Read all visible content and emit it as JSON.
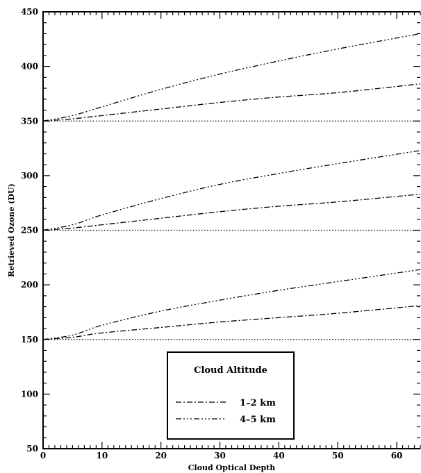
{
  "chart_data": {
    "type": "line",
    "title": "",
    "xlabel": "Cloud Optical Depth",
    "ylabel": "Retrieved Ozone (DU)",
    "xlim": [
      0,
      64
    ],
    "ylim": [
      50,
      450
    ],
    "x_ticks": [
      0,
      10,
      20,
      30,
      40,
      50,
      60
    ],
    "y_ticks": [
      50,
      100,
      150,
      200,
      250,
      300,
      350,
      400,
      450
    ],
    "grid": false,
    "legend": {
      "title": "Cloud Altitude",
      "position": "lower-center",
      "entries": [
        {
          "label": "1–2 km",
          "style": "dash-dot"
        },
        {
          "label": "4–5 km",
          "style": "dash-dot-dot-dot"
        }
      ]
    },
    "series": [
      {
        "style": "dotted",
        "x": [
          0,
          64
        ],
        "y": [
          350,
          350
        ]
      },
      {
        "legend_index": 0,
        "style": "dash-dot",
        "x": [
          0,
          5,
          10,
          20,
          30,
          40,
          50,
          64
        ],
        "y": [
          350,
          352,
          355,
          361,
          367,
          372,
          376,
          384
        ]
      },
      {
        "legend_index": 1,
        "style": "dash-dot-dot-dot",
        "x": [
          0,
          5,
          10,
          20,
          30,
          40,
          50,
          64
        ],
        "y": [
          350,
          355,
          363,
          379,
          393,
          405,
          416,
          430
        ]
      },
      {
        "style": "dotted",
        "x": [
          0,
          64
        ],
        "y": [
          250,
          250
        ]
      },
      {
        "legend_index": 0,
        "style": "dash-dot",
        "x": [
          0,
          5,
          10,
          20,
          30,
          40,
          50,
          64
        ],
        "y": [
          250,
          252,
          255,
          261,
          267,
          272,
          276,
          283
        ]
      },
      {
        "legend_index": 1,
        "style": "dash-dot-dot-dot",
        "x": [
          0,
          5,
          10,
          20,
          30,
          40,
          50,
          64
        ],
        "y": [
          250,
          255,
          264,
          279,
          292,
          302,
          311,
          323
        ]
      },
      {
        "style": "dotted",
        "x": [
          0,
          64
        ],
        "y": [
          150,
          150
        ]
      },
      {
        "legend_index": 0,
        "style": "dash-dot",
        "x": [
          0,
          5,
          10,
          20,
          30,
          40,
          50,
          64
        ],
        "y": [
          150,
          152,
          156,
          161,
          166,
          170,
          174,
          181
        ]
      },
      {
        "legend_index": 1,
        "style": "dash-dot-dot-dot",
        "x": [
          0,
          5,
          10,
          20,
          30,
          40,
          50,
          64
        ],
        "y": [
          150,
          154,
          163,
          176,
          186,
          195,
          203,
          214
        ]
      }
    ]
  }
}
